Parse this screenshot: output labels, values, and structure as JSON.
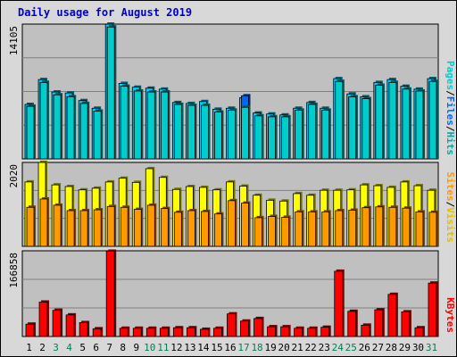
{
  "title": "Daily usage for August 2019",
  "colors": {
    "background": "#d8d8d8",
    "plot_background": "#c0c0c0",
    "hits": "#00ccff",
    "files": "#0066ff",
    "pages": "#00cccc",
    "visits": "#ffff00",
    "sites": "#ff9900",
    "kbytes": "#ff0000",
    "title": "#0000cc",
    "weekend_label": "#00805a"
  },
  "chart_data": [
    {
      "type": "bar",
      "panel": "top",
      "max_label": "14105",
      "ylim": [
        0,
        14105
      ],
      "legend": [
        "Pages",
        "Files",
        "Hits"
      ],
      "legend_sep": "/",
      "categories": [
        "1",
        "2",
        "3",
        "4",
        "5",
        "6",
        "7",
        "8",
        "9",
        "10",
        "11",
        "12",
        "13",
        "14",
        "15",
        "16",
        "17",
        "18",
        "19",
        "20",
        "21",
        "22",
        "23",
        "24",
        "25",
        "26",
        "27",
        "28",
        "29",
        "30",
        "31"
      ],
      "weekend": [
        3,
        4,
        10,
        11,
        17,
        18,
        24,
        25,
        31
      ],
      "series": [
        {
          "name": "Hits",
          "values": [
            5700,
            8300,
            7000,
            6900,
            6100,
            5300,
            14100,
            7900,
            7500,
            7400,
            7300,
            5900,
            5800,
            6000,
            5200,
            5300,
            6400,
            4800,
            4700,
            4600,
            5300,
            5900,
            5300,
            8400,
            6800,
            6500,
            8000,
            8300,
            7600,
            7300,
            8400
          ]
        },
        {
          "name": "Files",
          "values": [
            5500,
            8000,
            6700,
            6500,
            5800,
            5000,
            13800,
            7600,
            7100,
            7000,
            7000,
            5700,
            5600,
            5600,
            4900,
            5100,
            6600,
            4500,
            4400,
            4400,
            5100,
            5700,
            5100,
            8100,
            6500,
            6300,
            7700,
            8000,
            7300,
            7100,
            8100
          ]
        },
        {
          "name": "Pages",
          "values": [
            5500,
            8000,
            6700,
            6500,
            5800,
            5000,
            13800,
            7600,
            7100,
            7000,
            7000,
            5700,
            5600,
            5600,
            4900,
            5100,
            5400,
            4500,
            4400,
            4400,
            5100,
            5700,
            5100,
            8100,
            6500,
            6300,
            7700,
            8000,
            7300,
            7100,
            8100
          ]
        }
      ]
    },
    {
      "type": "bar",
      "panel": "middle",
      "max_label": "2020",
      "ylim": [
        0,
        2020
      ],
      "legend": [
        "Sites",
        "Visits"
      ],
      "legend_sep": "/",
      "categories": [
        "1",
        "2",
        "3",
        "4",
        "5",
        "6",
        "7",
        "8",
        "9",
        "10",
        "11",
        "12",
        "13",
        "14",
        "15",
        "16",
        "17",
        "18",
        "19",
        "20",
        "21",
        "22",
        "23",
        "24",
        "25",
        "26",
        "27",
        "28",
        "29",
        "30",
        "31"
      ],
      "series": [
        {
          "name": "Visits",
          "values": [
            1550,
            2020,
            1480,
            1440,
            1360,
            1400,
            1550,
            1640,
            1540,
            1870,
            1660,
            1370,
            1440,
            1420,
            1360,
            1550,
            1450,
            1230,
            1110,
            1090,
            1270,
            1230,
            1350,
            1350,
            1360,
            1480,
            1460,
            1420,
            1550,
            1460,
            1350
          ]
        },
        {
          "name": "Sites",
          "values": [
            940,
            1140,
            990,
            860,
            860,
            880,
            960,
            940,
            890,
            990,
            910,
            820,
            860,
            840,
            780,
            1100,
            1040,
            690,
            720,
            700,
            830,
            830,
            830,
            860,
            870,
            930,
            950,
            940,
            920,
            830,
            820
          ]
        }
      ]
    },
    {
      "type": "bar",
      "panel": "bottom",
      "max_label": "166858",
      "ylim": [
        0,
        166858
      ],
      "legend": [
        "KBytes"
      ],
      "categories": [
        "1",
        "2",
        "3",
        "4",
        "5",
        "6",
        "7",
        "8",
        "9",
        "10",
        "11",
        "12",
        "13",
        "14",
        "15",
        "16",
        "17",
        "18",
        "19",
        "20",
        "21",
        "22",
        "23",
        "24",
        "25",
        "26",
        "27",
        "28",
        "29",
        "30",
        "31"
      ],
      "series": [
        {
          "name": "KBytes",
          "values": [
            24000,
            67000,
            51000,
            42000,
            27000,
            15000,
            166000,
            16000,
            16000,
            16000,
            16000,
            17000,
            17000,
            14000,
            16000,
            44000,
            30000,
            35000,
            19000,
            19000,
            16000,
            16000,
            18000,
            127000,
            49000,
            22000,
            52000,
            82000,
            48000,
            17000,
            104000
          ]
        }
      ]
    }
  ]
}
